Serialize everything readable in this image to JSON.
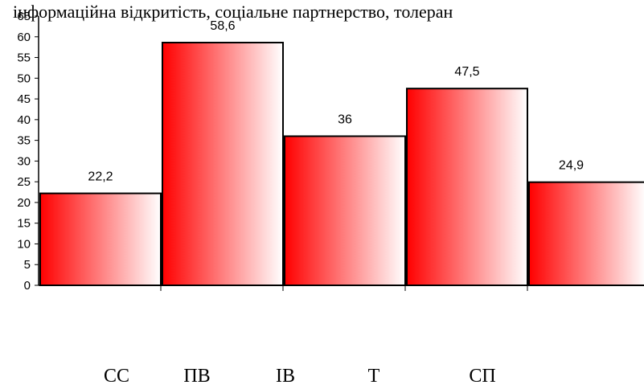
{
  "chart_data": {
    "type": "bar",
    "title": "інформаційна відкритість, соціальне партнерство, толеран",
    "categories": [
      "СС",
      "ПВ",
      "ІВ",
      "Т",
      "СП"
    ],
    "values": [
      22.2,
      58.6,
      36,
      47.5,
      24.9
    ],
    "value_labels": [
      "22,2",
      "58,6",
      "36",
      "47,5",
      "24,9"
    ],
    "ylim": [
      0,
      65
    ],
    "yticks": [
      0,
      5,
      10,
      15,
      20,
      25,
      30,
      35,
      40,
      45,
      50,
      55,
      60,
      65
    ],
    "xlabel": "",
    "ylabel": "",
    "grid": false,
    "colors": {
      "bar_dark": "#ff0000",
      "bar_light": "#ffffff",
      "outline": "#000000"
    }
  }
}
